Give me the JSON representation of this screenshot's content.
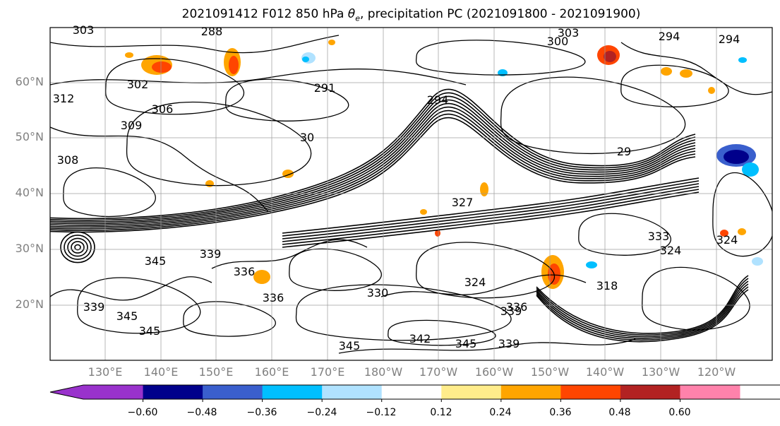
{
  "title": {
    "prefix": "2021091412 F012 850 hPa ",
    "theta_symbol": "θ",
    "theta_sub": "e",
    "suffix": ", precipitation PC (2021091800 - 2021091900)"
  },
  "axes": {
    "lat_labels": [
      "60°N",
      "50°N",
      "40°N",
      "30°N",
      "20°N"
    ],
    "lon_labels": [
      "130°E",
      "140°E",
      "150°E",
      "160°E",
      "170°E",
      "180°W",
      "170°W",
      "160°W",
      "150°W",
      "140°W",
      "130°W",
      "120°W"
    ]
  },
  "contour_labels": [
    "303",
    "288",
    "303",
    "300",
    "294",
    "294",
    "302",
    "312",
    "291",
    "294",
    "309",
    "306",
    "308",
    "30",
    "29",
    "327",
    "324",
    "339",
    "336",
    "345",
    "345",
    "336",
    "339",
    "345",
    "339",
    "336",
    "345",
    "342",
    "345",
    "339",
    "330",
    "333",
    "324",
    "318",
    "324"
  ],
  "colorbar": {
    "colors": [
      "#9932CC",
      "#00008B",
      "#3A5FCD",
      "#00BFFF",
      "#B0E2FF",
      "#FFFFFF",
      "#FFEC8B",
      "#FFA500",
      "#FF4500",
      "#B22222",
      "#FF82AB"
    ],
    "tick_labels": [
      "−0.60",
      "−0.48",
      "−0.36",
      "−0.24",
      "−0.12",
      "0.12",
      "0.24",
      "0.36",
      "0.48",
      "0.60"
    ]
  }
}
